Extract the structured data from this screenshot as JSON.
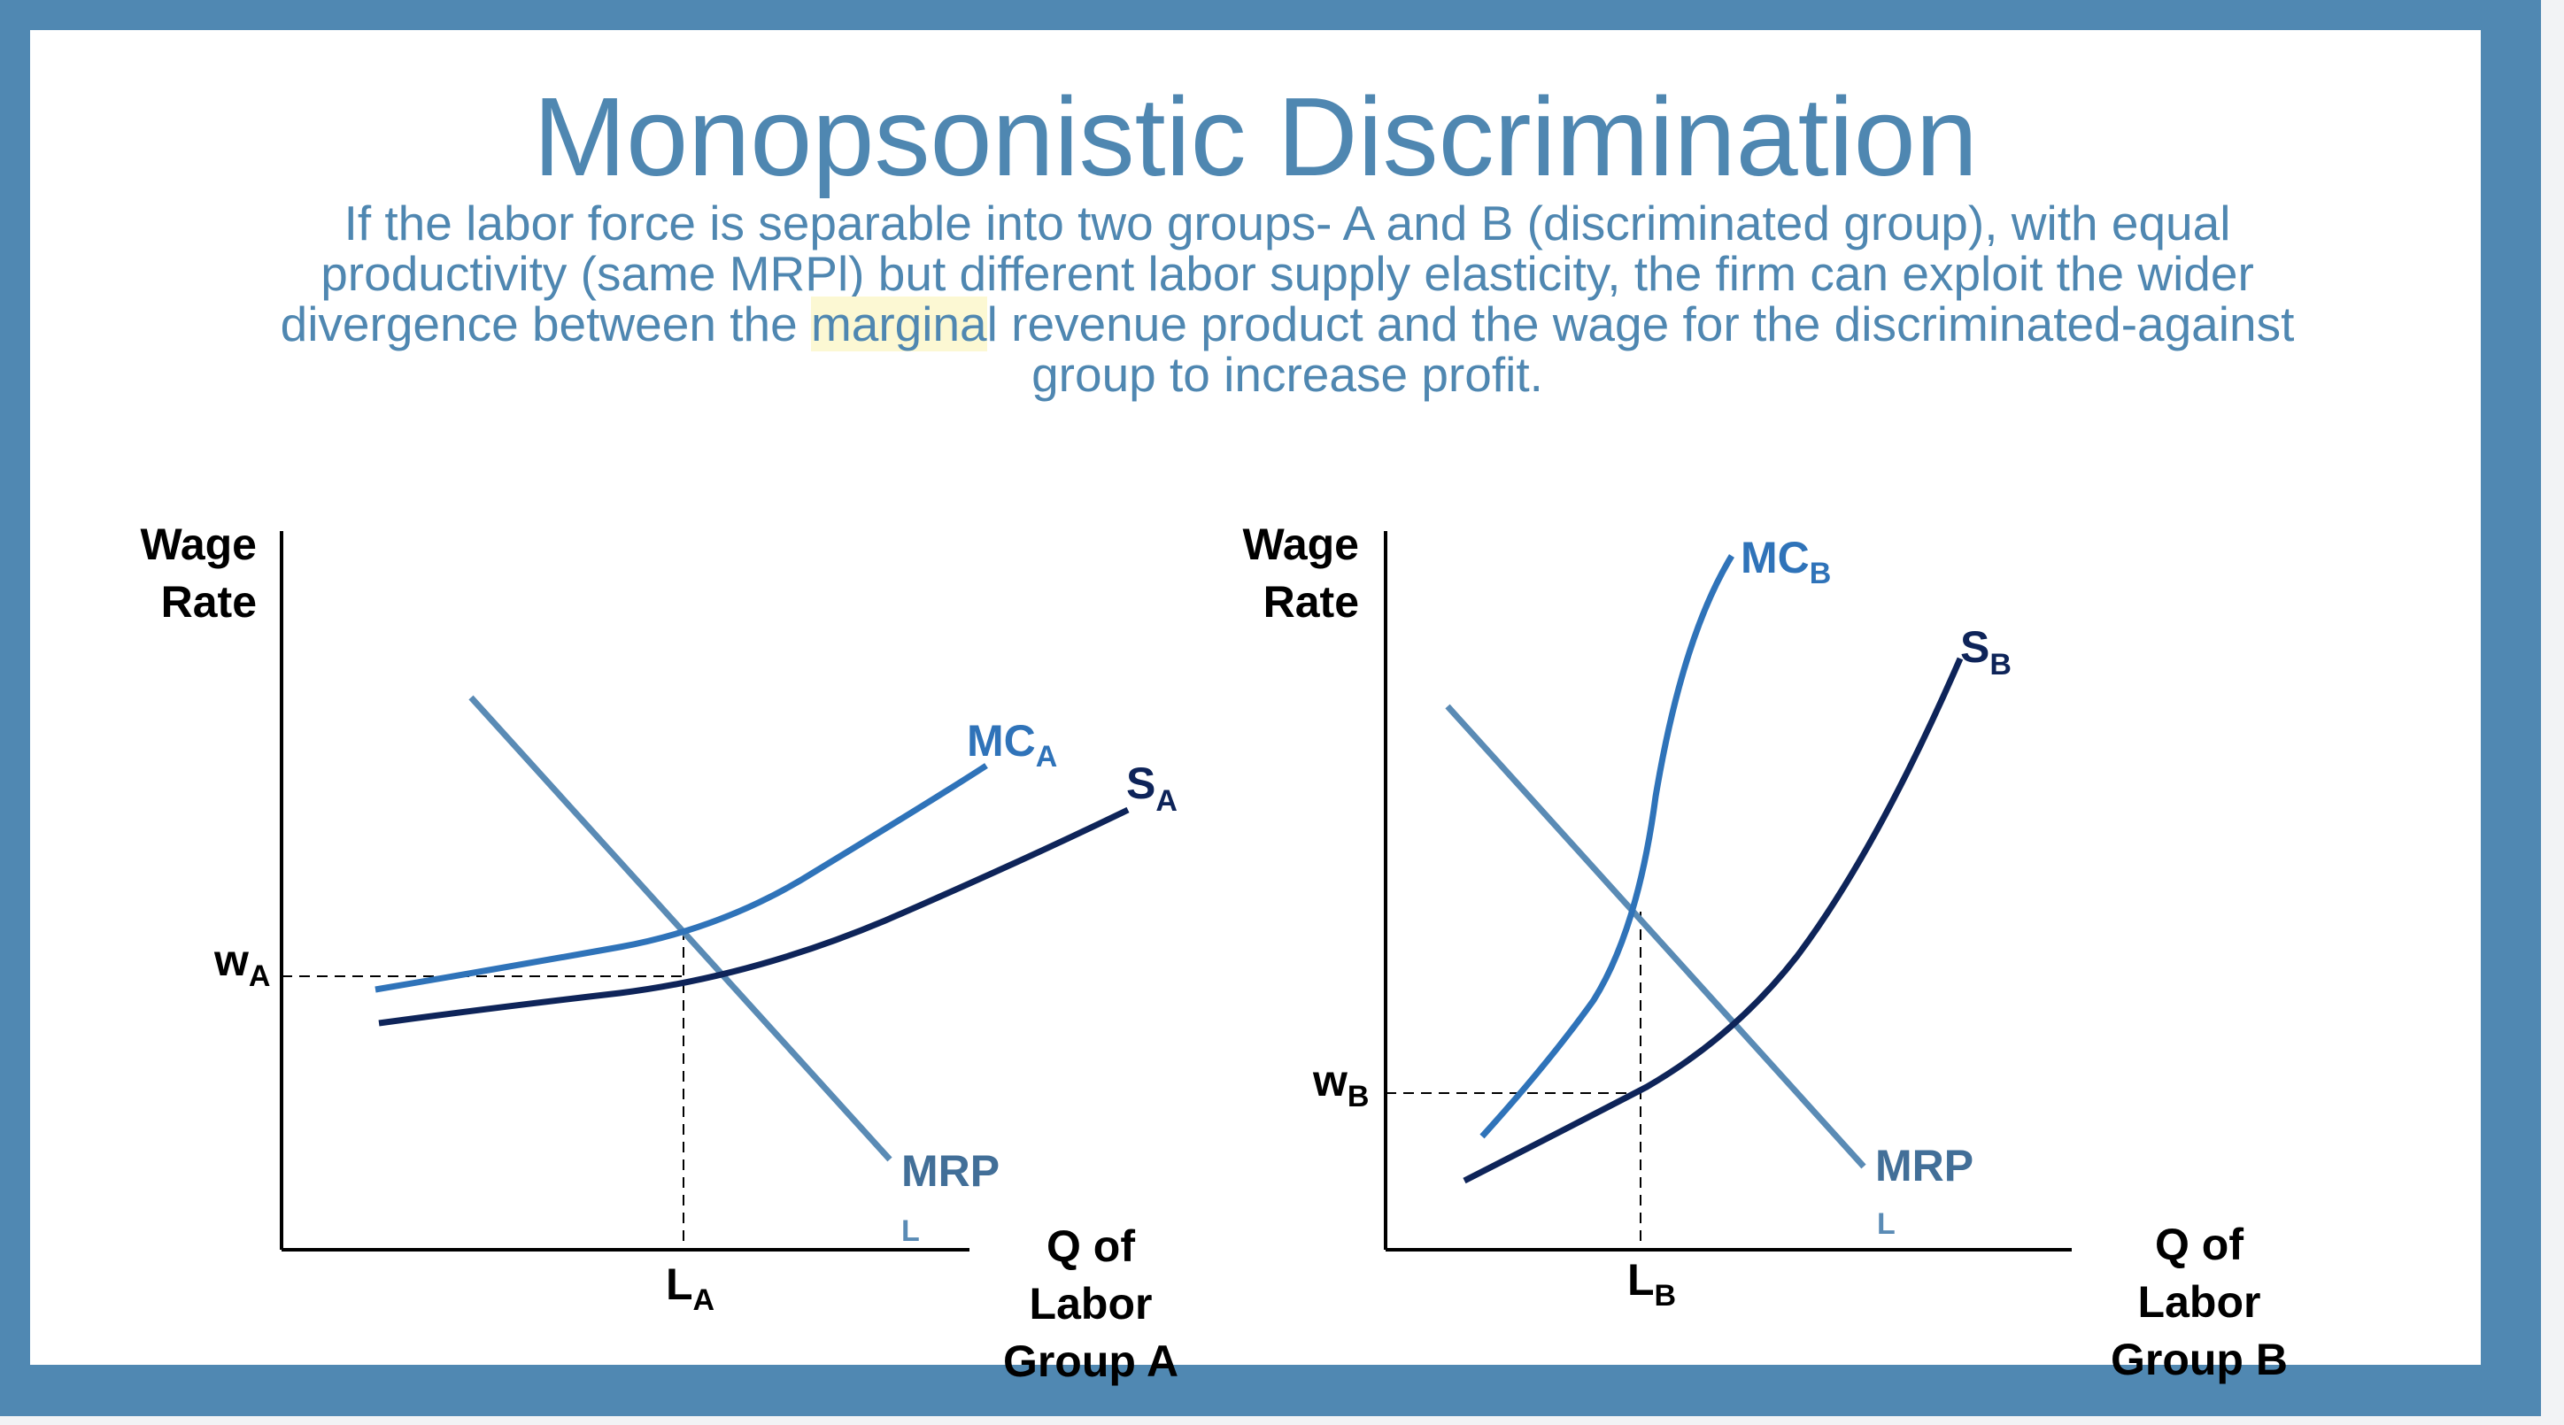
{
  "slide": {
    "title": "Monopsonistic Discrimination",
    "body_pre": "If the labor force is separable into two groups- A and B (discriminated group), with equal productivity (same MRPl) but different labor supply elasticity, the firm can exploit the wider divergence between the ",
    "body_highlight": "margina",
    "body_post": "l revenue product and the wage for the discriminated-against group to increase profit."
  },
  "colors": {
    "frame": "#5088b2",
    "title_text": "#4f87b1",
    "mc_curve": "#2f73b9",
    "supply_curve": "#0e2459",
    "mrp_curve": "#5a8bb5",
    "highlight": "#fcf8d3"
  },
  "diagrams": [
    {
      "id": "group-a",
      "y_label_line1": "Wage",
      "y_label_line2": "Rate",
      "x_label_line1": "Q of",
      "x_label_line2": "Labor",
      "x_label_line3": "Group A",
      "mc_label": "MC",
      "mc_sub": "A",
      "s_label": "S",
      "s_sub": "A",
      "mrp_label": "MRP",
      "mrp_sub": "L",
      "wage_label": "w",
      "wage_sub": "A",
      "qty_label": "L",
      "qty_sub": "A"
    },
    {
      "id": "group-b",
      "y_label_line1": "Wage",
      "y_label_line2": "Rate",
      "x_label_line1": "Q of",
      "x_label_line2": "Labor",
      "x_label_line3": "Group B",
      "mc_label": "MC",
      "mc_sub": "B",
      "s_label": "S",
      "s_sub": "B",
      "mrp_label": "MRP",
      "mrp_sub": "L",
      "wage_label": "w",
      "wage_sub": "B",
      "qty_label": "L",
      "qty_sub": "B"
    }
  ]
}
